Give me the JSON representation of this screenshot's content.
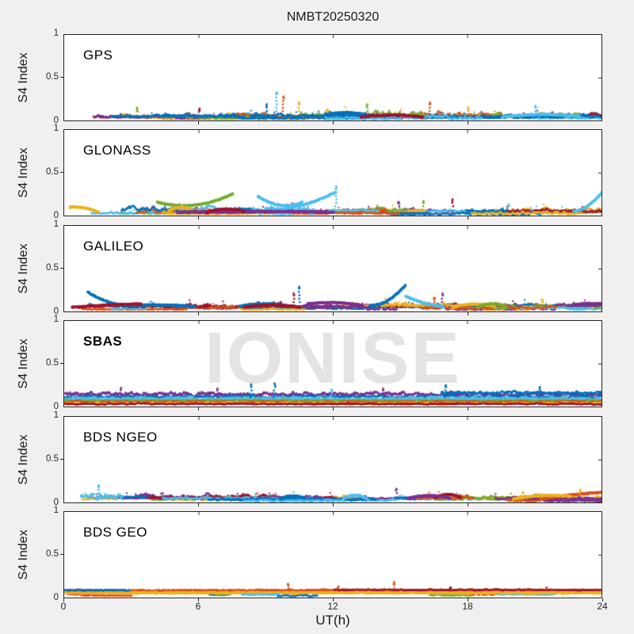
{
  "figure": {
    "title": "NMBT20250320",
    "watermark": "IONISE",
    "background": "#f0f0f0",
    "axis_color": "#262626"
  },
  "chart_data": {
    "type": "scatter",
    "title": "NMBT20250320",
    "xlabel": "UT(h)",
    "ylabel": "S4 Index",
    "watermark": "IONISE",
    "xlim": [
      0,
      24
    ],
    "ylim": [
      0,
      1
    ],
    "xticks": [
      0,
      6,
      12,
      18,
      24
    ],
    "yticks": [
      0,
      0.5,
      1
    ],
    "grid": false,
    "legend": false,
    "palette": [
      "#0072BD",
      "#D95319",
      "#EDB120",
      "#7E2F8E",
      "#77AC30",
      "#4DBEEE",
      "#A2142F"
    ],
    "panels": [
      {
        "label": "GPS",
        "bold": false,
        "seed": 11,
        "band": {
          "n": 44,
          "base": [
            0.02,
            0.065
          ],
          "amp": [
            0.03,
            0.09
          ],
          "len": [
            1.5,
            7
          ]
        },
        "lines": [],
        "arcs": [
          [
            0,
            11.6,
            13.6,
            0.08,
            0.13,
            0.07
          ],
          [
            5,
            19.5,
            23,
            0.05,
            0.11,
            0.06
          ],
          [
            6,
            13.2,
            16,
            0.05,
            0.1,
            0.05
          ]
        ],
        "spikes": [
          [
            5,
            9.45,
            0.34
          ],
          [
            1,
            9.75,
            0.29
          ],
          [
            2,
            10.45,
            0.22
          ],
          [
            0,
            9.0,
            0.2
          ],
          [
            4,
            13.5,
            0.2
          ],
          [
            1,
            16.3,
            0.22
          ],
          [
            5,
            21.0,
            0.18
          ],
          [
            4,
            3.2,
            0.16
          ],
          [
            6,
            6.0,
            0.15
          ],
          [
            2,
            18.0,
            0.16
          ]
        ]
      },
      {
        "label": "GLONASS",
        "bold": false,
        "seed": 22,
        "band": {
          "n": 34,
          "base": [
            0.02,
            0.065
          ],
          "amp": [
            0.03,
            0.08
          ],
          "len": [
            1.5,
            7
          ]
        },
        "lines": [],
        "arcs": [
          [
            4,
            4.1,
            7.5,
            0.17,
            0.05,
            0.27
          ],
          [
            5,
            8.6,
            10.6,
            0.24,
            0.06,
            0.17
          ],
          [
            5,
            9.3,
            12.1,
            0.08,
            0.1,
            0.29
          ],
          [
            5,
            22.7,
            24,
            0.06,
            0.08,
            0.29
          ],
          [
            2,
            4.6,
            5.7,
            0.06,
            0.16,
            0.06
          ],
          [
            2,
            0.2,
            1.5,
            0.11,
            0.12,
            0.05
          ],
          [
            3,
            5.0,
            12.0,
            0.05,
            0.07,
            0.05
          ],
          [
            6,
            6.3,
            8.0,
            0.05,
            0.12,
            0.06
          ]
        ],
        "spikes": [
          [
            5,
            12.1,
            0.35
          ],
          [
            6,
            17.3,
            0.2
          ],
          [
            3,
            14.9,
            0.17
          ],
          [
            4,
            16.0,
            0.18
          ],
          [
            5,
            19.8,
            0.14
          ]
        ]
      },
      {
        "label": "GALILEO",
        "bold": false,
        "seed": 33,
        "band": {
          "n": 34,
          "base": [
            0.025,
            0.07
          ],
          "amp": [
            0.03,
            0.08
          ],
          "len": [
            1.5,
            7
          ]
        },
        "lines": [],
        "arcs": [
          [
            0,
            1.0,
            2.7,
            0.24,
            0.1,
            0.08
          ],
          [
            0,
            2.7,
            5.8,
            0.08,
            0.1,
            0.07
          ],
          [
            6,
            0.3,
            3.4,
            0.06,
            0.09,
            0.1
          ],
          [
            0,
            7.8,
            9.9,
            0.07,
            0.13,
            0.08
          ],
          [
            0,
            13.6,
            15.2,
            0.08,
            0.08,
            0.32
          ],
          [
            5,
            15.2,
            16.9,
            0.19,
            0.09,
            0.07
          ],
          [
            3,
            10.8,
            13.3,
            0.1,
            0.14,
            0.08
          ],
          [
            2,
            17.3,
            19.2,
            0.06,
            0.13,
            0.07
          ],
          [
            4,
            18.4,
            19.7,
            0.06,
            0.14,
            0.07
          ],
          [
            6,
            8.0,
            10.5,
            0.06,
            0.11,
            0.06
          ],
          [
            3,
            22.6,
            24,
            0.08,
            0.12,
            0.1
          ]
        ],
        "spikes": [
          [
            0,
            10.45,
            0.3
          ],
          [
            6,
            10.2,
            0.22
          ],
          [
            3,
            16.85,
            0.22
          ],
          [
            1,
            16.5,
            0.17
          ],
          [
            2,
            21.3,
            0.15
          ]
        ]
      },
      {
        "label": "SBAS",
        "bold": true,
        "seed": 44,
        "band": {
          "n": 10,
          "base": [
            0.03,
            0.06
          ],
          "amp": [
            0.02,
            0.05
          ],
          "len": [
            2,
            8
          ]
        },
        "lines": [
          [
            3,
            0,
            24,
            0.155,
            0.03
          ],
          [
            0,
            0,
            24,
            0.125,
            0.02
          ],
          [
            5,
            0,
            24,
            0.105,
            0.022
          ],
          [
            5,
            0,
            24,
            0.09,
            0.018
          ],
          [
            4,
            0,
            24,
            0.08,
            0.012
          ],
          [
            1,
            0,
            24,
            0.065,
            0.012
          ],
          [
            2,
            0,
            24,
            0.05,
            0.012
          ],
          [
            6,
            0,
            24,
            0.04,
            0.01
          ],
          [
            0,
            16.8,
            24,
            0.17,
            0.02
          ]
        ],
        "arcs": [],
        "spikes": [
          [
            0,
            8.3,
            0.27
          ],
          [
            0,
            9.35,
            0.28
          ],
          [
            5,
            11.9,
            0.21
          ],
          [
            0,
            17.0,
            0.26
          ],
          [
            0,
            21.2,
            0.24
          ],
          [
            3,
            2.5,
            0.23
          ],
          [
            3,
            6.8,
            0.22
          ],
          [
            3,
            14.2,
            0.22
          ]
        ]
      },
      {
        "label": "BDS NGEO",
        "bold": false,
        "seed": 55,
        "band": {
          "n": 38,
          "base": [
            0.02,
            0.06
          ],
          "amp": [
            0.025,
            0.07
          ],
          "len": [
            1.5,
            7
          ]
        },
        "lines": [
          [
            5,
            0.7,
            2.6,
            0.08,
            0.05
          ],
          [
            0,
            6.4,
            13.9,
            0.045,
            0.02
          ],
          [
            5,
            8.0,
            12.5,
            0.03,
            0.015
          ]
        ],
        "arcs": [
          [
            5,
            12.4,
            13.5,
            0.05,
            0.14,
            0.05
          ],
          [
            6,
            16.5,
            17.7,
            0.06,
            0.15,
            0.06
          ],
          [
            1,
            21.2,
            24,
            0.05,
            0.11,
            0.13
          ],
          [
            2,
            20.0,
            22.6,
            0.05,
            0.12,
            0.08
          ],
          [
            0,
            9.6,
            10.7,
            0.05,
            0.12,
            0.06
          ],
          [
            3,
            15.3,
            17.2,
            0.06,
            0.12,
            0.06
          ]
        ],
        "spikes": [
          [
            5,
            1.5,
            0.21
          ],
          [
            3,
            14.8,
            0.17
          ],
          [
            2,
            23.0,
            0.16
          ]
        ]
      },
      {
        "label": "BDS GEO",
        "bold": false,
        "seed": 66,
        "band": {
          "n": 8,
          "base": [
            0.02,
            0.05
          ],
          "amp": [
            0.01,
            0.04
          ],
          "len": [
            0.5,
            3
          ]
        },
        "lines": [
          [
            1,
            0,
            24,
            0.095,
            0.01
          ],
          [
            1,
            0,
            24,
            0.088,
            0.008
          ],
          [
            2,
            0,
            24,
            0.07,
            0.01
          ],
          [
            2,
            0,
            24,
            0.06,
            0.009
          ],
          [
            0,
            0,
            2.9,
            0.095,
            0.01
          ],
          [
            5,
            7.9,
            9.6,
            0.045,
            0.007
          ],
          [
            6,
            12,
            24,
            0.1,
            0.007
          ]
        ],
        "arcs": [],
        "spikes": [
          [
            1,
            9.95,
            0.17
          ],
          [
            1,
            14.7,
            0.19
          ],
          [
            1,
            12.2,
            0.14
          ],
          [
            6,
            17.2,
            0.13
          ],
          [
            1,
            21.5,
            0.13
          ]
        ]
      }
    ]
  }
}
